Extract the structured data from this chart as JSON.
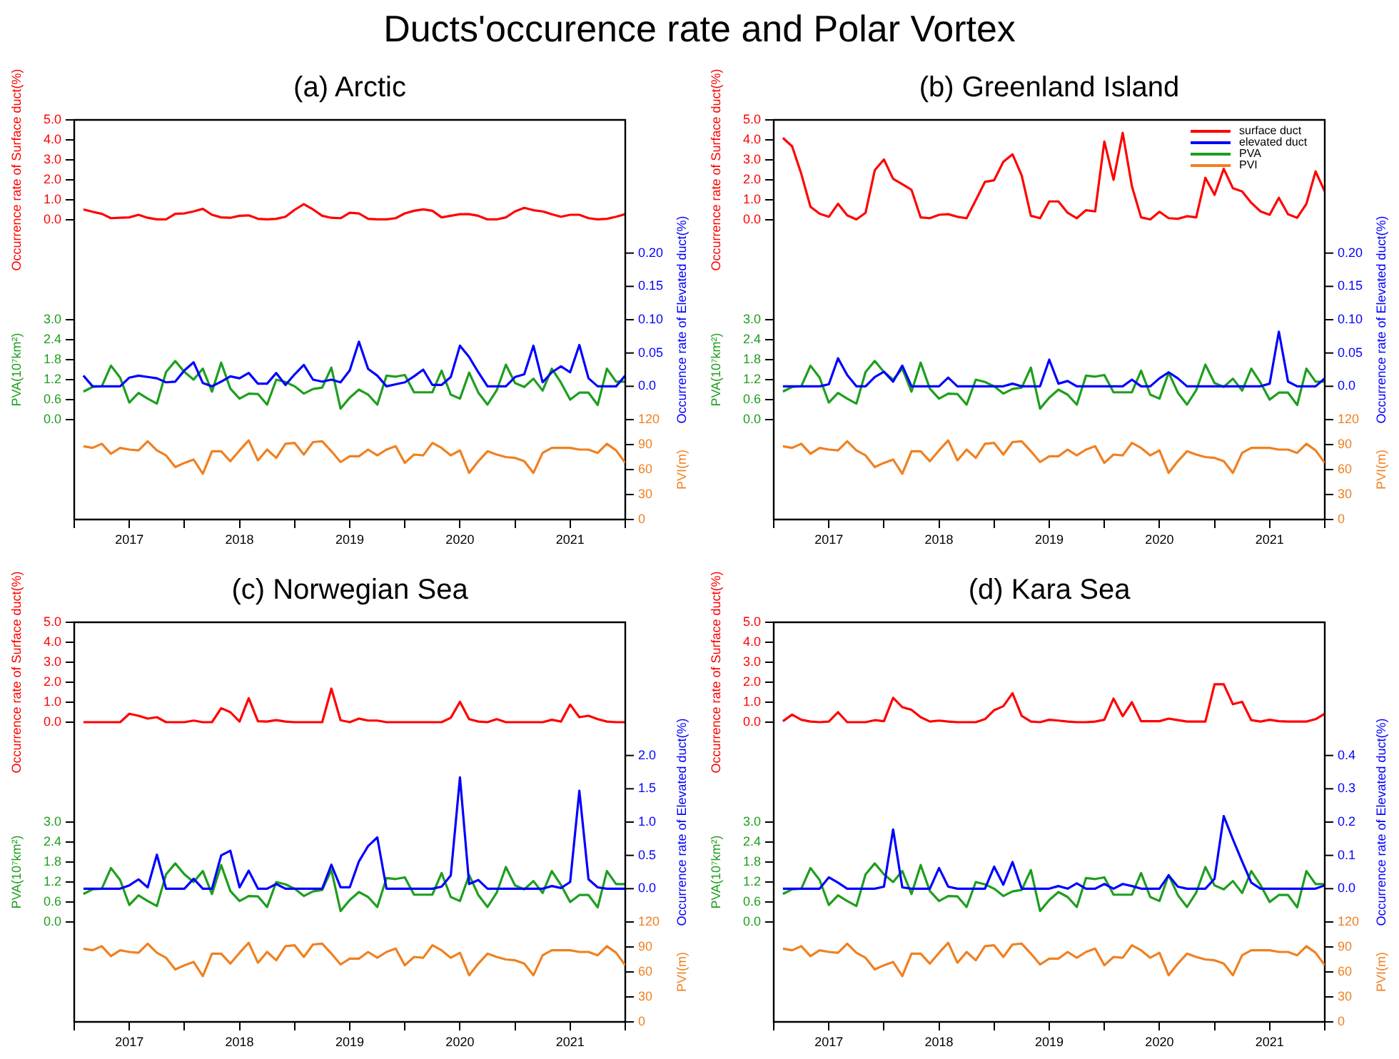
{
  "chart_data": [
    {
      "type": "line",
      "title": "(a) Arctic",
      "annotations": [
        "Ducts'occurence rate and Polar Vortex"
      ],
      "ylabel": "Occurrence rate of Surface duct(%)",
      "y2label": "Occurrence rate of Elevated duct(%)",
      "y3label": "PVA(10⁷km²)",
      "x": [
        "2016-08",
        "2016-09",
        "2016-10",
        "2016-11",
        "2016-12",
        "2017-01",
        "2017-02",
        "2017-03",
        "2017-04",
        "2017-05",
        "2017-06",
        "2017-07",
        "2017-08",
        "2017-09",
        "2017-10",
        "2017-11",
        "2017-12",
        "2018-01",
        "2018-02",
        "2018-03",
        "2018-04",
        "2018-05",
        "2018-06",
        "2018-07",
        "2018-08",
        "2018-09",
        "2018-10",
        "2018-11",
        "2018-12",
        "2019-01",
        "2019-02",
        "2019-03",
        "2019-04",
        "2019-05",
        "2019-06",
        "2019-07",
        "2019-08",
        "2019-09",
        "2019-10",
        "2019-11",
        "2019-12",
        "2020-01",
        "2020-02",
        "2020-03",
        "2020-04",
        "2020-05",
        "2020-06",
        "2020-07",
        "2020-08",
        "2020-09",
        "2020-10",
        "2020-11",
        "2020-12",
        "2021-01",
        "2021-02",
        "2021-03",
        "2021-04",
        "2021-05",
        "2021-06",
        "2021-07"
      ],
      "xlim": [
        "2016-07",
        "2021-07"
      ],
      "xticks": [
        {
          "value": "2016-07",
          "label": null
        },
        {
          "value": "2017",
          "label": "2017"
        },
        {
          "value": "2017-07",
          "label": null
        },
        {
          "value": "2018",
          "label": "2018"
        },
        {
          "value": "2018-07",
          "label": null
        },
        {
          "value": "2019",
          "label": "2019"
        },
        {
          "value": "2019-07",
          "label": null
        },
        {
          "value": "2020",
          "label": "2020"
        },
        {
          "value": "2020-07",
          "label": null
        },
        {
          "value": "2021",
          "label": "2021"
        },
        {
          "value": "2021-07",
          "label": null
        }
      ],
      "ylim": [
        -15,
        5
      ],
      "yticks": [
        {
          "value": 0,
          "label": "0.0"
        },
        {
          "value": 1,
          "label": "1.0"
        },
        {
          "value": 2,
          "label": "2.0"
        },
        {
          "value": 3,
          "label": "3.0"
        },
        {
          "value": 4,
          "label": "4.0"
        },
        {
          "value": 5,
          "label": "5.0"
        }
      ],
      "y2lim": [
        -0.2,
        0.4
      ],
      "y2ticks": [
        {
          "value": 0,
          "label": "0.0"
        },
        {
          "value": 0.05,
          "label": "0.05"
        },
        {
          "value": 0.1,
          "label": "0.10"
        },
        {
          "value": 0.15,
          "label": "0.15"
        },
        {
          "value": 0.2,
          "label": "0.20"
        }
      ],
      "y3lim": [
        -3,
        9
      ],
      "y3ticks": [
        {
          "value": 0,
          "label": "0.0"
        },
        {
          "value": 0.6,
          "label": "0.6"
        },
        {
          "value": 1.2,
          "label": "1.2"
        },
        {
          "value": 1.8,
          "label": "1.8"
        },
        {
          "value": 2.4,
          "label": "2.4"
        },
        {
          "value": 3,
          "label": "3.0"
        }
      ],
      "series": [
        {
          "color": "#ff0000",
          "values": [
            0.52,
            0.4,
            0.3,
            0.08,
            0.1,
            0.12,
            0.25,
            0.1,
            0.02,
            0.02,
            0.3,
            0.32,
            0.42,
            0.55,
            0.25,
            0.12,
            0.1,
            0.2,
            0.22,
            0.05,
            0.02,
            0.05,
            0.15,
            0.5,
            0.78,
            0.52,
            0.2,
            0.1,
            0.08,
            0.35,
            0.32,
            0.05,
            0.02,
            0.02,
            0.08,
            0.32,
            0.45,
            0.52,
            0.45,
            0.12,
            0.2,
            0.28,
            0.28,
            0.2,
            0.02,
            0.02,
            0.12,
            0.42,
            0.6,
            0.48,
            0.42,
            0.28,
            0.15,
            0.25,
            0.25,
            0.08,
            0.02,
            0.05,
            0.15,
            0.28
          ]
        },
        {
          "color": "#0000ff",
          "axis": "y2",
          "values": [
            0.016,
            0,
            0,
            0,
            0,
            0.013,
            0.016,
            0.014,
            0.012,
            0.006,
            0.007,
            0.024,
            0.036,
            0.005,
            0,
            0.007,
            0.015,
            0.012,
            0.02,
            0.004,
            0.004,
            0.02,
            0.002,
            0.018,
            0.032,
            0.01,
            0.007,
            0.01,
            0.006,
            0.024,
            0.067,
            0.026,
            0.016,
            0,
            0.003,
            0.006,
            0.015,
            0.025,
            0.002,
            0.002,
            0.014,
            0.061,
            0.044,
            0.021,
            0,
            0,
            0,
            0.014,
            0.018,
            0.061,
            0.006,
            0.021,
            0.03,
            0.021,
            0.062,
            0.012,
            0,
            0,
            0,
            0.016
          ]
        },
        {
          "color": "#1e9e1e",
          "axis": "y3",
          "values": [
            0.84,
            0.98,
            1.0,
            1.62,
            1.26,
            0.51,
            0.8,
            0.63,
            0.48,
            1.43,
            1.76,
            1.43,
            1.2,
            1.53,
            0.84,
            1.71,
            0.93,
            0.63,
            0.78,
            0.77,
            0.45,
            1.2,
            1.13,
            1.0,
            0.78,
            0.92,
            0.96,
            1.56,
            0.33,
            0.66,
            0.9,
            0.75,
            0.45,
            1.32,
            1.29,
            1.34,
            0.82,
            0.82,
            0.82,
            1.47,
            0.75,
            0.63,
            1.41,
            0.81,
            0.45,
            0.88,
            1.65,
            1.1,
            0.98,
            1.23,
            0.87,
            1.53,
            1.11,
            0.6,
            0.81,
            0.81,
            0.44,
            1.53,
            1.14,
            1.14
          ]
        }
      ]
    },
    {
      "type": "line",
      "y2label": "PVI(m)",
      "tick_labels": "y",
      "x": [
        "2016-08",
        "2016-09",
        "2016-10",
        "2016-11",
        "2016-12",
        "2017-01",
        "2017-02",
        "2017-03",
        "2017-04",
        "2017-05",
        "2017-06",
        "2017-07",
        "2017-08",
        "2017-09",
        "2017-10",
        "2017-11",
        "2017-12",
        "2018-01",
        "2018-02",
        "2018-03",
        "2018-04",
        "2018-05",
        "2018-06",
        "2018-07",
        "2018-08",
        "2018-09",
        "2018-10",
        "2018-11",
        "2018-12",
        "2019-01",
        "2019-02",
        "2019-03",
        "2019-04",
        "2019-05",
        "2019-06",
        "2019-07",
        "2019-08",
        "2019-09",
        "2019-10",
        "2019-11",
        "2019-12",
        "2020-01",
        "2020-02",
        "2020-03",
        "2020-04",
        "2020-05",
        "2020-06",
        "2020-07",
        "2020-08",
        "2020-09",
        "2020-10",
        "2020-11",
        "2020-12",
        "2021-01",
        "2021-02",
        "2021-03",
        "2021-04",
        "2021-05",
        "2021-06",
        "2021-07"
      ],
      "xlim": [
        "2016-07",
        "2021-07"
      ],
      "y2lim": [
        0,
        480
      ],
      "y2ticks": [
        0,
        30,
        60,
        90,
        120
      ],
      "series": [
        {
          "color": "#f08020",
          "axis": "y2",
          "values": [
            88,
            86,
            91,
            79,
            86,
            84,
            83,
            94,
            83,
            77,
            63,
            68,
            72,
            55,
            82,
            82,
            70,
            83,
            95,
            71,
            84,
            74,
            91,
            92,
            78,
            93,
            94,
            82,
            69,
            76,
            76,
            84,
            77,
            84,
            88,
            68,
            78,
            77,
            92,
            86,
            77,
            83,
            56,
            70,
            82,
            78,
            75,
            74,
            70,
            56,
            80,
            86,
            86,
            86,
            84,
            84,
            80,
            91,
            83,
            68
          ]
        }
      ]
    },
    {
      "type": "line",
      "title": "(b) Greenland Island",
      "legend": "top right",
      "ylabel": "Occurrence rate of Surface duct(%)",
      "y2label": "Occurrence rate of Elevated duct(%)",
      "y3label": "PVA(10⁷km²)",
      "x": [
        "2016-08",
        "2016-09",
        "2016-10",
        "2016-11",
        "2016-12",
        "2017-01",
        "2017-02",
        "2017-03",
        "2017-04",
        "2017-05",
        "2017-06",
        "2017-07",
        "2017-08",
        "2017-09",
        "2017-10",
        "2017-11",
        "2017-12",
        "2018-01",
        "2018-02",
        "2018-03",
        "2018-04",
        "2018-05",
        "2018-06",
        "2018-07",
        "2018-08",
        "2018-09",
        "2018-10",
        "2018-11",
        "2018-12",
        "2019-01",
        "2019-02",
        "2019-03",
        "2019-04",
        "2019-05",
        "2019-06",
        "2019-07",
        "2019-08",
        "2019-09",
        "2019-10",
        "2019-11",
        "2019-12",
        "2020-01",
        "2020-02",
        "2020-03",
        "2020-04",
        "2020-05",
        "2020-06",
        "2020-07",
        "2020-08",
        "2020-09",
        "2020-10",
        "2020-11",
        "2020-12",
        "2021-01",
        "2021-02",
        "2021-03",
        "2021-04",
        "2021-05",
        "2021-06",
        "2021-07"
      ],
      "xlim": [
        "2016-07",
        "2021-07"
      ],
      "xticks": [
        {
          "value": "2016-07",
          "label": null
        },
        {
          "value": "2017",
          "label": "2017"
        },
        {
          "value": "2017-07",
          "label": null
        },
        {
          "value": "2018",
          "label": "2018"
        },
        {
          "value": "2018-07",
          "label": null
        },
        {
          "value": "2019",
          "label": "2019"
        },
        {
          "value": "2019-07",
          "label": null
        },
        {
          "value": "2020",
          "label": "2020"
        },
        {
          "value": "2020-07",
          "label": null
        },
        {
          "value": "2021",
          "label": "2021"
        },
        {
          "value": "2021-07",
          "label": null
        }
      ],
      "ylim": [
        -15,
        5
      ],
      "yticks": [
        {
          "value": 0,
          "label": "0.0"
        },
        {
          "value": 1,
          "label": "1.0"
        },
        {
          "value": 2,
          "label": "2.0"
        },
        {
          "value": 3,
          "label": "3.0"
        },
        {
          "value": 4,
          "label": "4.0"
        },
        {
          "value": 5,
          "label": "5.0"
        }
      ],
      "y2lim": [
        -0.2,
        0.4
      ],
      "y2ticks": [
        {
          "value": 0,
          "label": "0.0"
        },
        {
          "value": 0.05,
          "label": "0.05"
        },
        {
          "value": 0.1,
          "label": "0.10"
        },
        {
          "value": 0.15,
          "label": "0.15"
        },
        {
          "value": 0.2,
          "label": "0.20"
        }
      ],
      "y3lim": [
        -3,
        9
      ],
      "y3ticks": [
        {
          "value": 0,
          "label": "0.0"
        },
        {
          "value": 0.6,
          "label": "0.6"
        },
        {
          "value": 1.2,
          "label": "1.2"
        },
        {
          "value": 1.8,
          "label": "1.8"
        },
        {
          "value": 2.4,
          "label": "2.4"
        },
        {
          "value": 3,
          "label": "3.0"
        }
      ],
      "series": [
        {
          "name": "surface duct",
          "color": "#ff0000",
          "values": [
            4.1,
            3.68,
            2.3,
            0.65,
            0.3,
            0.15,
            0.8,
            0.22,
            0.02,
            0.35,
            2.48,
            3.02,
            2.05,
            1.78,
            1.5,
            0.12,
            0.08,
            0.25,
            0.28,
            0.15,
            0.08,
            0.98,
            1.9,
            1.98,
            2.9,
            3.28,
            2.22,
            0.2,
            0.08,
            0.92,
            0.92,
            0.35,
            0.08,
            0.48,
            0.42,
            3.92,
            2.0,
            4.35,
            1.68,
            0.12,
            0.02,
            0.4,
            0.08,
            0.05,
            0.18,
            0.12,
            2.1,
            1.25,
            2.55,
            1.58,
            1.42,
            0.85,
            0.42,
            0.25,
            1.1,
            0.28,
            0.1,
            0.8,
            2.42,
            1.42
          ]
        },
        {
          "name": "elevated duct",
          "color": "#0000ff",
          "axis": "y2",
          "values": [
            0,
            0,
            0,
            0,
            0,
            0.003,
            0.042,
            0.017,
            0,
            0,
            0.014,
            0.022,
            0.007,
            0.031,
            0,
            0,
            0,
            0,
            0.013,
            0,
            0,
            0,
            0,
            0,
            0,
            0.004,
            0,
            0,
            0,
            0.04,
            0.004,
            0.008,
            0,
            0,
            0,
            0,
            0,
            0,
            0.01,
            0,
            0,
            0.012,
            0.021,
            0.012,
            0,
            0,
            0,
            0,
            0,
            0,
            0,
            0,
            0,
            0.004,
            0.082,
            0.007,
            0,
            0,
            0,
            0.012
          ]
        },
        {
          "name": "PVA",
          "color": "#1e9e1e",
          "axis": "y3",
          "values": [
            0.84,
            0.98,
            1.0,
            1.62,
            1.26,
            0.51,
            0.8,
            0.63,
            0.48,
            1.43,
            1.76,
            1.43,
            1.2,
            1.53,
            0.84,
            1.71,
            0.93,
            0.63,
            0.78,
            0.77,
            0.45,
            1.2,
            1.13,
            1.0,
            0.78,
            0.92,
            0.96,
            1.56,
            0.33,
            0.66,
            0.9,
            0.75,
            0.45,
            1.32,
            1.29,
            1.34,
            0.82,
            0.82,
            0.82,
            1.47,
            0.75,
            0.63,
            1.41,
            0.81,
            0.45,
            0.88,
            1.65,
            1.1,
            0.98,
            1.23,
            0.87,
            1.53,
            1.11,
            0.6,
            0.81,
            0.81,
            0.44,
            1.53,
            1.14,
            1.14
          ]
        }
      ]
    },
    {
      "type": "line",
      "legend": "top right",
      "y2label": "PVI(m)",
      "tick_labels": "y",
      "x": [
        "2016-08",
        "2016-09",
        "2016-10",
        "2016-11",
        "2016-12",
        "2017-01",
        "2017-02",
        "2017-03",
        "2017-04",
        "2017-05",
        "2017-06",
        "2017-07",
        "2017-08",
        "2017-09",
        "2017-10",
        "2017-11",
        "2017-12",
        "2018-01",
        "2018-02",
        "2018-03",
        "2018-04",
        "2018-05",
        "2018-06",
        "2018-07",
        "2018-08",
        "2018-09",
        "2018-10",
        "2018-11",
        "2018-12",
        "2019-01",
        "2019-02",
        "2019-03",
        "2019-04",
        "2019-05",
        "2019-06",
        "2019-07",
        "2019-08",
        "2019-09",
        "2019-10",
        "2019-11",
        "2019-12",
        "2020-01",
        "2020-02",
        "2020-03",
        "2020-04",
        "2020-05",
        "2020-06",
        "2020-07",
        "2020-08",
        "2020-09",
        "2020-10",
        "2020-11",
        "2020-12",
        "2021-01",
        "2021-02",
        "2021-03",
        "2021-04",
        "2021-05",
        "2021-06",
        "2021-07"
      ],
      "xlim": [
        "2016-07",
        "2021-07"
      ],
      "y2lim": [
        0,
        480
      ],
      "y2ticks": [
        0,
        30,
        60,
        90,
        120
      ],
      "series": [
        {
          "name": "PVI",
          "color": "#f08020",
          "axis": "y2",
          "values": [
            88,
            86,
            91,
            79,
            86,
            84,
            83,
            94,
            83,
            77,
            63,
            68,
            72,
            55,
            82,
            82,
            70,
            83,
            95,
            71,
            84,
            74,
            91,
            92,
            78,
            93,
            94,
            82,
            69,
            76,
            76,
            84,
            77,
            84,
            88,
            68,
            78,
            77,
            92,
            86,
            77,
            83,
            56,
            70,
            82,
            78,
            75,
            74,
            70,
            56,
            80,
            86,
            86,
            86,
            84,
            84,
            80,
            91,
            83,
            68
          ]
        }
      ]
    },
    {
      "type": "line",
      "title": "(c) Norwegian Sea",
      "ylabel": "Occurrence rate of Surface duct(%)",
      "y2label": "Occurrence rate of Elevated duct(%)",
      "y3label": "PVA(10⁷km²)",
      "x": [
        "2016-08",
        "2016-09",
        "2016-10",
        "2016-11",
        "2016-12",
        "2017-01",
        "2017-02",
        "2017-03",
        "2017-04",
        "2017-05",
        "2017-06",
        "2017-07",
        "2017-08",
        "2017-09",
        "2017-10",
        "2017-11",
        "2017-12",
        "2018-01",
        "2018-02",
        "2018-03",
        "2018-04",
        "2018-05",
        "2018-06",
        "2018-07",
        "2018-08",
        "2018-09",
        "2018-10",
        "2018-11",
        "2018-12",
        "2019-01",
        "2019-02",
        "2019-03",
        "2019-04",
        "2019-05",
        "2019-06",
        "2019-07",
        "2019-08",
        "2019-09",
        "2019-10",
        "2019-11",
        "2019-12",
        "2020-01",
        "2020-02",
        "2020-03",
        "2020-04",
        "2020-05",
        "2020-06",
        "2020-07",
        "2020-08",
        "2020-09",
        "2020-10",
        "2020-11",
        "2020-12",
        "2021-01",
        "2021-02",
        "2021-03",
        "2021-04",
        "2021-05",
        "2021-06",
        "2021-07"
      ],
      "xlim": [
        "2016-07",
        "2021-07"
      ],
      "xticks": [
        {
          "value": "2016-07",
          "label": null
        },
        {
          "value": "2017",
          "label": "2017"
        },
        {
          "value": "2017-07",
          "label": null
        },
        {
          "value": "2018",
          "label": "2018"
        },
        {
          "value": "2018-07",
          "label": null
        },
        {
          "value": "2019",
          "label": "2019"
        },
        {
          "value": "2019-07",
          "label": null
        },
        {
          "value": "2020",
          "label": "2020"
        },
        {
          "value": "2020-07",
          "label": null
        },
        {
          "value": "2021",
          "label": "2021"
        },
        {
          "value": "2021-07",
          "label": null
        }
      ],
      "ylim": [
        -15,
        5
      ],
      "yticks": [
        {
          "value": 0,
          "label": "0.0"
        },
        {
          "value": 1,
          "label": "1.0"
        },
        {
          "value": 2,
          "label": "2.0"
        },
        {
          "value": 3,
          "label": "3.0"
        },
        {
          "value": 4,
          "label": "4.0"
        },
        {
          "value": 5,
          "label": "5.0"
        }
      ],
      "y2lim": [
        -2,
        4
      ],
      "y2ticks": [
        {
          "value": 0,
          "label": "0.0"
        },
        {
          "value": 0.5,
          "label": "0.5"
        },
        {
          "value": 1,
          "label": "1.0"
        },
        {
          "value": 1.5,
          "label": "1.5"
        },
        {
          "value": 2,
          "label": "2.0"
        }
      ],
      "y3lim": [
        -3,
        9
      ],
      "y3ticks": [
        {
          "value": 0,
          "label": "0.0"
        },
        {
          "value": 0.6,
          "label": "0.6"
        },
        {
          "value": 1.2,
          "label": "1.2"
        },
        {
          "value": 1.8,
          "label": "1.8"
        },
        {
          "value": 2.4,
          "label": "2.4"
        },
        {
          "value": 3,
          "label": "3.0"
        }
      ],
      "series": [
        {
          "color": "#ff0000",
          "values": [
            0,
            0,
            0,
            0,
            0,
            0.42,
            0.32,
            0.18,
            0.25,
            0,
            0,
            0,
            0.08,
            0,
            0,
            0.7,
            0.5,
            0.03,
            1.2,
            0.05,
            0.03,
            0.1,
            0.03,
            0,
            0,
            0,
            0,
            1.68,
            0.1,
            0,
            0.18,
            0.08,
            0.08,
            0,
            0,
            0,
            0,
            0,
            0,
            0,
            0.22,
            1.02,
            0.15,
            0.03,
            0,
            0.15,
            0,
            0,
            0,
            0,
            0,
            0.12,
            0.03,
            0.88,
            0.25,
            0.32,
            0.15,
            0.03,
            0,
            0
          ]
        },
        {
          "color": "#0000ff",
          "axis": "y2",
          "values": [
            0,
            0,
            0,
            0,
            0,
            0.05,
            0.14,
            0.02,
            0.51,
            0,
            0,
            0,
            0.15,
            0,
            0,
            0.5,
            0.57,
            0.02,
            0.27,
            0,
            0,
            0.07,
            0,
            0,
            0,
            0,
            0,
            0.36,
            0.02,
            0.02,
            0.41,
            0.64,
            0.77,
            0,
            0,
            0,
            0,
            0,
            0,
            0.03,
            0.2,
            1.67,
            0.07,
            0.13,
            0,
            0,
            0,
            0,
            0,
            0,
            0,
            0.04,
            0.01,
            0.1,
            1.47,
            0.14,
            0.02,
            0,
            0,
            0
          ]
        },
        {
          "color": "#1e9e1e",
          "axis": "y3",
          "values": [
            0.84,
            0.98,
            1.0,
            1.62,
            1.26,
            0.51,
            0.8,
            0.63,
            0.48,
            1.43,
            1.76,
            1.43,
            1.2,
            1.53,
            0.84,
            1.71,
            0.93,
            0.63,
            0.78,
            0.77,
            0.45,
            1.2,
            1.13,
            1.0,
            0.78,
            0.92,
            0.96,
            1.56,
            0.33,
            0.66,
            0.9,
            0.75,
            0.45,
            1.32,
            1.29,
            1.34,
            0.82,
            0.82,
            0.82,
            1.47,
            0.75,
            0.63,
            1.41,
            0.81,
            0.45,
            0.88,
            1.65,
            1.1,
            0.98,
            1.23,
            0.87,
            1.53,
            1.11,
            0.6,
            0.81,
            0.81,
            0.44,
            1.53,
            1.14,
            1.14
          ]
        }
      ]
    },
    {
      "type": "line",
      "y2label": "PVI(m)",
      "tick_labels": "y",
      "x": [
        "2016-08",
        "2016-09",
        "2016-10",
        "2016-11",
        "2016-12",
        "2017-01",
        "2017-02",
        "2017-03",
        "2017-04",
        "2017-05",
        "2017-06",
        "2017-07",
        "2017-08",
        "2017-09",
        "2017-10",
        "2017-11",
        "2017-12",
        "2018-01",
        "2018-02",
        "2018-03",
        "2018-04",
        "2018-05",
        "2018-06",
        "2018-07",
        "2018-08",
        "2018-09",
        "2018-10",
        "2018-11",
        "2018-12",
        "2019-01",
        "2019-02",
        "2019-03",
        "2019-04",
        "2019-05",
        "2019-06",
        "2019-07",
        "2019-08",
        "2019-09",
        "2019-10",
        "2019-11",
        "2019-12",
        "2020-01",
        "2020-02",
        "2020-03",
        "2020-04",
        "2020-05",
        "2020-06",
        "2020-07",
        "2020-08",
        "2020-09",
        "2020-10",
        "2020-11",
        "2020-12",
        "2021-01",
        "2021-02",
        "2021-03",
        "2021-04",
        "2021-05",
        "2021-06",
        "2021-07"
      ],
      "xlim": [
        "2016-07",
        "2021-07"
      ],
      "y2lim": [
        0,
        480
      ],
      "y2ticks": [
        0,
        30,
        60,
        90,
        120
      ],
      "series": [
        {
          "color": "#f08020",
          "axis": "y2",
          "values": [
            88,
            86,
            91,
            79,
            86,
            84,
            83,
            94,
            83,
            77,
            63,
            68,
            72,
            55,
            82,
            82,
            70,
            83,
            95,
            71,
            84,
            74,
            91,
            92,
            78,
            93,
            94,
            82,
            69,
            76,
            76,
            84,
            77,
            84,
            88,
            68,
            78,
            77,
            92,
            86,
            77,
            83,
            56,
            70,
            82,
            78,
            75,
            74,
            70,
            56,
            80,
            86,
            86,
            86,
            84,
            84,
            80,
            91,
            83,
            68
          ]
        }
      ]
    },
    {
      "type": "line",
      "title": "(d) Kara Sea",
      "ylabel": "Occurrence rate of Surface duct(%)",
      "y2label": "Occurrence rate of Elevated duct(%)",
      "y3label": "PVA(10⁷km²)",
      "x": [
        "2016-08",
        "2016-09",
        "2016-10",
        "2016-11",
        "2016-12",
        "2017-01",
        "2017-02",
        "2017-03",
        "2017-04",
        "2017-05",
        "2017-06",
        "2017-07",
        "2017-08",
        "2017-09",
        "2017-10",
        "2017-11",
        "2017-12",
        "2018-01",
        "2018-02",
        "2018-03",
        "2018-04",
        "2018-05",
        "2018-06",
        "2018-07",
        "2018-08",
        "2018-09",
        "2018-10",
        "2018-11",
        "2018-12",
        "2019-01",
        "2019-02",
        "2019-03",
        "2019-04",
        "2019-05",
        "2019-06",
        "2019-07",
        "2019-08",
        "2019-09",
        "2019-10",
        "2019-11",
        "2019-12",
        "2020-01",
        "2020-02",
        "2020-03",
        "2020-04",
        "2020-05",
        "2020-06",
        "2020-07",
        "2020-08",
        "2020-09",
        "2020-10",
        "2020-11",
        "2020-12",
        "2021-01",
        "2021-02",
        "2021-03",
        "2021-04",
        "2021-05",
        "2021-06",
        "2021-07"
      ],
      "xlim": [
        "2016-07",
        "2021-07"
      ],
      "xticks": [
        {
          "value": "2016-07",
          "label": null
        },
        {
          "value": "2017",
          "label": "2017"
        },
        {
          "value": "2017-07",
          "label": null
        },
        {
          "value": "2018",
          "label": "2018"
        },
        {
          "value": "2018-07",
          "label": null
        },
        {
          "value": "2019",
          "label": "2019"
        },
        {
          "value": "2019-07",
          "label": null
        },
        {
          "value": "2020",
          "label": "2020"
        },
        {
          "value": "2020-07",
          "label": null
        },
        {
          "value": "2021",
          "label": "2021"
        },
        {
          "value": "2021-07",
          "label": null
        }
      ],
      "ylim": [
        -15,
        5
      ],
      "yticks": [
        {
          "value": 0,
          "label": "0.0"
        },
        {
          "value": 1,
          "label": "1.0"
        },
        {
          "value": 2,
          "label": "2.0"
        },
        {
          "value": 3,
          "label": "3.0"
        },
        {
          "value": 4,
          "label": "4.0"
        },
        {
          "value": 5,
          "label": "5.0"
        }
      ],
      "y2lim": [
        -0.4,
        0.8
      ],
      "y2ticks": [
        {
          "value": 0,
          "label": "0.0"
        },
        {
          "value": 0.1,
          "label": "0.1"
        },
        {
          "value": 0.2,
          "label": "0.2"
        },
        {
          "value": 0.3,
          "label": "0.3"
        },
        {
          "value": 0.4,
          "label": "0.4"
        }
      ],
      "y3lim": [
        -3,
        9
      ],
      "y3ticks": [
        {
          "value": 0,
          "label": "0.0"
        },
        {
          "value": 0.6,
          "label": "0.6"
        },
        {
          "value": 1.2,
          "label": "1.2"
        },
        {
          "value": 1.8,
          "label": "1.8"
        },
        {
          "value": 2.4,
          "label": "2.4"
        },
        {
          "value": 3,
          "label": "3.0"
        }
      ],
      "series": [
        {
          "color": "#ff0000",
          "values": [
            0.05,
            0.38,
            0.12,
            0.03,
            0,
            0.03,
            0.5,
            0,
            0,
            0,
            0.1,
            0.05,
            1.22,
            0.75,
            0.62,
            0.25,
            0.03,
            0.08,
            0.03,
            0,
            0,
            0,
            0.15,
            0.6,
            0.8,
            1.45,
            0.32,
            0.03,
            0,
            0.12,
            0.08,
            0.03,
            0,
            0,
            0.03,
            0.12,
            1.18,
            0.3,
            1.0,
            0.05,
            0.05,
            0.05,
            0.18,
            0.1,
            0.03,
            0.03,
            0.03,
            1.9,
            1.9,
            0.9,
            1.02,
            0.1,
            0.03,
            0.12,
            0.05,
            0.03,
            0.03,
            0.03,
            0.15,
            0.42
          ]
        },
        {
          "color": "#0000ff",
          "axis": "y2",
          "values": [
            0,
            0,
            0,
            0,
            0,
            0.034,
            0.018,
            0,
            0,
            0,
            0,
            0.006,
            0.178,
            0.004,
            0,
            0,
            0,
            0.062,
            0.006,
            0,
            0,
            0,
            0,
            0.066,
            0.012,
            0.08,
            0,
            0,
            0,
            0,
            0.008,
            0,
            0.016,
            0,
            0,
            0.014,
            0,
            0.014,
            0.008,
            0,
            0,
            0,
            0.04,
            0.006,
            0,
            0,
            0,
            0.03,
            0.218,
            0.148,
            0.082,
            0.018,
            0,
            0,
            0,
            0,
            0,
            0,
            0,
            0.01
          ]
        },
        {
          "color": "#1e9e1e",
          "axis": "y3",
          "values": [
            0.84,
            0.98,
            1.0,
            1.62,
            1.26,
            0.51,
            0.8,
            0.63,
            0.48,
            1.43,
            1.76,
            1.43,
            1.2,
            1.53,
            0.84,
            1.71,
            0.93,
            0.63,
            0.78,
            0.77,
            0.45,
            1.2,
            1.13,
            1.0,
            0.78,
            0.92,
            0.96,
            1.56,
            0.33,
            0.66,
            0.9,
            0.75,
            0.45,
            1.32,
            1.29,
            1.34,
            0.82,
            0.82,
            0.82,
            1.47,
            0.75,
            0.63,
            1.41,
            0.81,
            0.45,
            0.88,
            1.65,
            1.1,
            0.98,
            1.23,
            0.87,
            1.53,
            1.11,
            0.6,
            0.81,
            0.81,
            0.44,
            1.53,
            1.14,
            1.14
          ]
        }
      ]
    },
    {
      "type": "line",
      "y2label": "PVI(m)",
      "tick_labels": "y",
      "x": [
        "2016-08",
        "2016-09",
        "2016-10",
        "2016-11",
        "2016-12",
        "2017-01",
        "2017-02",
        "2017-03",
        "2017-04",
        "2017-05",
        "2017-06",
        "2017-07",
        "2017-08",
        "2017-09",
        "2017-10",
        "2017-11",
        "2017-12",
        "2018-01",
        "2018-02",
        "2018-03",
        "2018-04",
        "2018-05",
        "2018-06",
        "2018-07",
        "2018-08",
        "2018-09",
        "2018-10",
        "2018-11",
        "2018-12",
        "2019-01",
        "2019-02",
        "2019-03",
        "2019-04",
        "2019-05",
        "2019-06",
        "2019-07",
        "2019-08",
        "2019-09",
        "2019-10",
        "2019-11",
        "2019-12",
        "2020-01",
        "2020-02",
        "2020-03",
        "2020-04",
        "2020-05",
        "2020-06",
        "2020-07",
        "2020-08",
        "2020-09",
        "2020-10",
        "2020-11",
        "2020-12",
        "2021-01",
        "2021-02",
        "2021-03",
        "2021-04",
        "2021-05",
        "2021-06",
        "2021-07"
      ],
      "xlim": [
        "2016-07",
        "2021-07"
      ],
      "y2lim": [
        0,
        480
      ],
      "y2ticks": [
        0,
        30,
        60,
        90,
        120
      ],
      "series": [
        {
          "color": "#f08020",
          "axis": "y2",
          "values": [
            88,
            86,
            91,
            79,
            86,
            84,
            83,
            94,
            83,
            77,
            63,
            68,
            72,
            55,
            82,
            82,
            70,
            83,
            95,
            71,
            84,
            74,
            91,
            92,
            78,
            93,
            94,
            82,
            69,
            76,
            76,
            84,
            77,
            84,
            88,
            68,
            78,
            77,
            92,
            86,
            77,
            83,
            56,
            70,
            82,
            78,
            75,
            74,
            70,
            56,
            80,
            86,
            86,
            86,
            84,
            84,
            80,
            91,
            83,
            68
          ]
        }
      ]
    }
  ]
}
